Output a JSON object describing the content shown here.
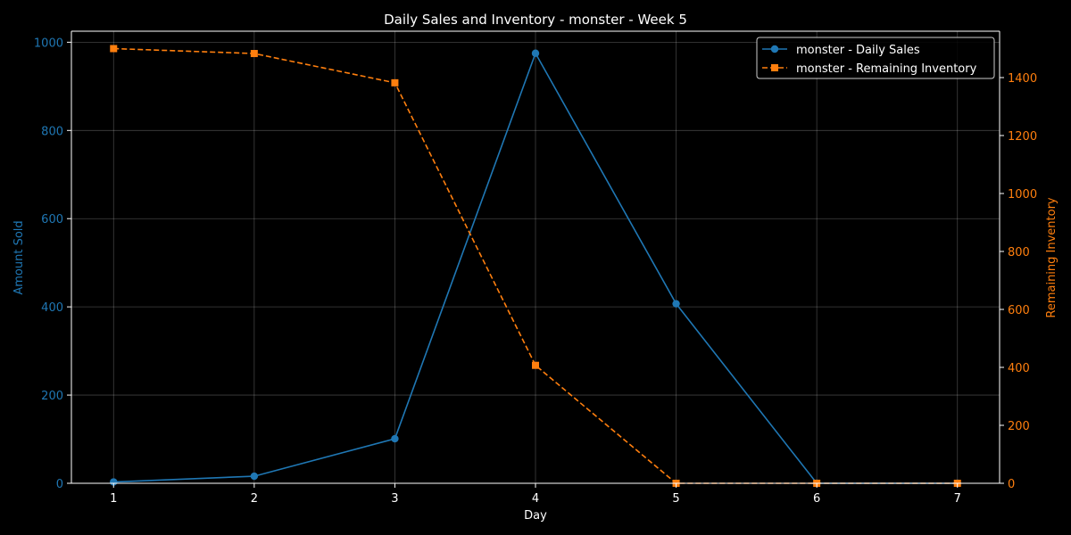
{
  "chart_data": {
    "type": "line",
    "title": "Daily Sales and Inventory - monster - Week 5",
    "xlabel": "Day",
    "ylabel_left": "Amount Sold",
    "ylabel_right": "Remaining Inventory",
    "x": [
      1,
      2,
      3,
      4,
      5,
      6,
      7
    ],
    "xlim": [
      0.7,
      7.3
    ],
    "ylim_left": [
      0,
      1025
    ],
    "ylim_right": [
      0,
      1560
    ],
    "yticks_left": [
      0,
      200,
      400,
      600,
      800,
      1000
    ],
    "yticks_right": [
      0,
      200,
      400,
      600,
      800,
      1000,
      1200,
      1400
    ],
    "grid": true,
    "legend_position": "top-right",
    "series": [
      {
        "name": "monster - Daily Sales",
        "axis": "left",
        "color": "#1f77b4",
        "marker": "circle",
        "linestyle": "solid",
        "values": [
          3,
          16,
          101,
          975,
          407,
          0,
          0
        ]
      },
      {
        "name": "monster - Remaining Inventory",
        "axis": "right",
        "color": "#ff7f0e",
        "marker": "square",
        "linestyle": "dashed",
        "values": [
          1500,
          1483,
          1382,
          407,
          0,
          0,
          0
        ]
      }
    ]
  }
}
